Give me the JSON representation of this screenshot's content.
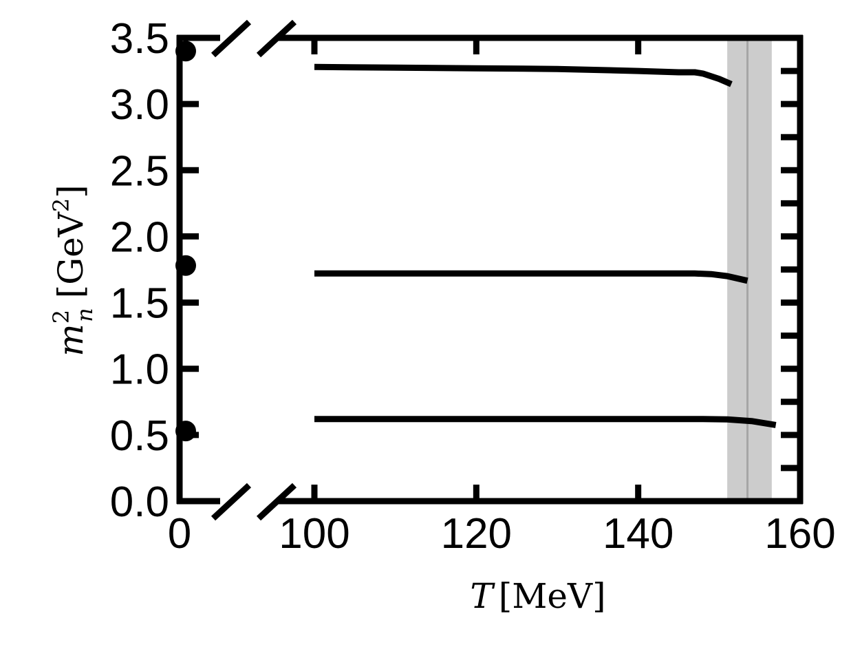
{
  "chart_data": {
    "type": "line",
    "title": "",
    "xlabel": "T [MeV]",
    "xlabel_parts": {
      "var": "T",
      "unit": "[MeV]"
    },
    "ylabel": "m_n^2 [GeV^2]",
    "ylabel_parts": {
      "var": "m",
      "sup": "2",
      "sub": "n",
      "unit_open": "[GeV",
      "unit_sup": "2",
      "unit_close": "]"
    },
    "xlim": [
      0,
      160
    ],
    "x_broken_axis": {
      "left_segment": [
        0,
        0
      ],
      "right_segment": [
        100,
        160
      ]
    },
    "ylim": [
      0.0,
      3.5
    ],
    "x_ticks": [
      {
        "value": 0,
        "label": "0"
      },
      {
        "value": 100,
        "label": "100"
      },
      {
        "value": 120,
        "label": "120"
      },
      {
        "value": 140,
        "label": "140"
      },
      {
        "value": 160,
        "label": "160"
      }
    ],
    "y_ticks": [
      {
        "value": 0.0,
        "label": "0.0"
      },
      {
        "value": 0.5,
        "label": "0.5"
      },
      {
        "value": 1.0,
        "label": "1.0"
      },
      {
        "value": 1.5,
        "label": "1.5"
      },
      {
        "value": 2.0,
        "label": "2.0"
      },
      {
        "value": 2.5,
        "label": "2.5"
      },
      {
        "value": 3.0,
        "label": "3.0"
      },
      {
        "value": 3.5,
        "label": "3.5"
      }
    ],
    "series": [
      {
        "x": [
          100,
          110,
          120,
          130,
          140,
          145,
          147,
          148,
          150,
          151.5
        ],
        "y": [
          3.28,
          3.275,
          3.27,
          3.265,
          3.25,
          3.24,
          3.24,
          3.23,
          3.19,
          3.15
        ]
      },
      {
        "x": [
          100,
          110,
          120,
          130,
          140,
          145,
          147,
          149,
          151,
          153.5
        ],
        "y": [
          1.72,
          1.72,
          1.72,
          1.72,
          1.72,
          1.72,
          1.72,
          1.715,
          1.7,
          1.665
        ]
      },
      {
        "x": [
          100,
          110,
          120,
          130,
          140,
          145,
          148,
          151,
          154,
          157
        ],
        "y": [
          0.62,
          0.62,
          0.62,
          0.62,
          0.62,
          0.62,
          0.62,
          0.618,
          0.605,
          0.575
        ]
      }
    ],
    "zero_temperature_points": [
      {
        "x": 0,
        "y": 3.4
      },
      {
        "x": 0,
        "y": 1.78
      },
      {
        "x": 0,
        "y": 0.53
      }
    ],
    "band": {
      "x_min": 151,
      "x_max": 156.5,
      "center": 153.5,
      "color": "#cccccc",
      "line_color": "#a6a6a6"
    },
    "colors": {
      "series": "#000000",
      "axes": "#000000"
    }
  }
}
